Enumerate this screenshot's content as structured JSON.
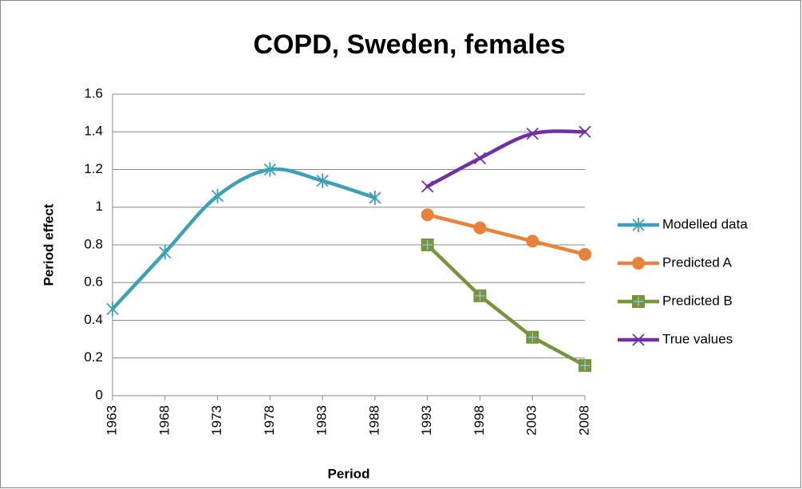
{
  "chart_data": {
    "type": "line",
    "title": "COPD, Sweden, females",
    "x_label": "Period",
    "y_label": "Period effect",
    "categories": [
      "1963",
      "1968",
      "1973",
      "1978",
      "1983",
      "1988",
      "1993",
      "1998",
      "2003",
      "2008"
    ],
    "ylim": [
      0,
      1.6
    ],
    "yticks": [
      0,
      0.2,
      0.4,
      0.6,
      0.8,
      1,
      1.2,
      1.4,
      1.6
    ],
    "grid": true,
    "legend": "right",
    "series": [
      {
        "name": "Modelled data",
        "color": "#3f9fb5",
        "marker": "asterisk",
        "smooth": true,
        "values": [
          0.46,
          0.76,
          1.06,
          1.2,
          1.14,
          1.05,
          null,
          null,
          null,
          null
        ]
      },
      {
        "name": "Predicted A",
        "color": "#e8813a",
        "marker": "circle",
        "smooth": false,
        "values": [
          null,
          null,
          null,
          null,
          null,
          null,
          0.96,
          0.89,
          0.82,
          0.75
        ]
      },
      {
        "name": "Predicted B",
        "color": "#77933c",
        "marker": "square",
        "smooth": false,
        "values": [
          null,
          null,
          null,
          null,
          null,
          null,
          0.8,
          0.53,
          0.31,
          0.16
        ]
      },
      {
        "name": "True values",
        "color": "#7030a0",
        "marker": "x",
        "smooth": true,
        "values": [
          null,
          null,
          null,
          null,
          null,
          null,
          1.11,
          1.26,
          1.39,
          1.4
        ]
      }
    ]
  }
}
